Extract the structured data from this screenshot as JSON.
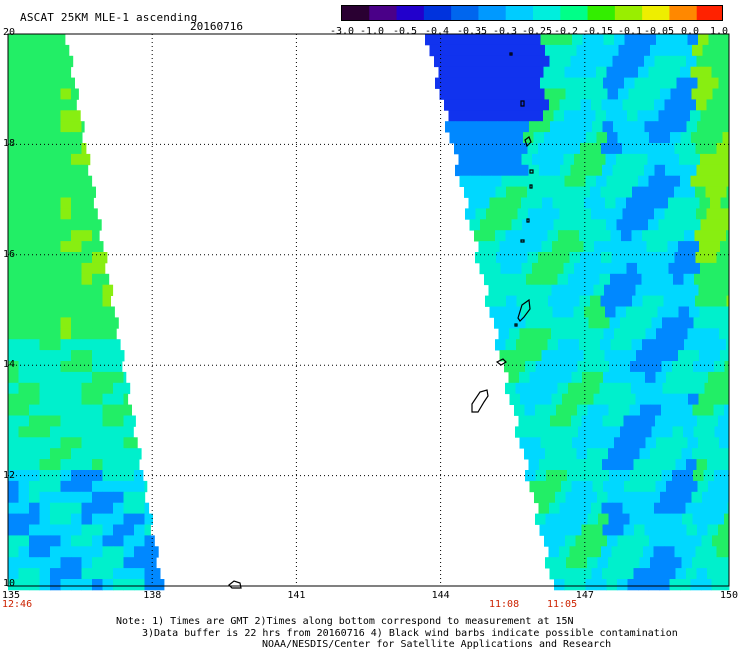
{
  "header": {
    "title": "ASCAT 25KM MLE-1 ascending",
    "date": "20160716"
  },
  "colorbar": {
    "labels": [
      "-3.0",
      "-1.0",
      "-0.5",
      "-0.4",
      "-0.35",
      "-0.3",
      "-0.25",
      "-0.2",
      "-0.15",
      "-0.1",
      "-0.05",
      "0.0",
      "1.0"
    ],
    "colors": [
      "#2a0032",
      "#4a0088",
      "#2200cc",
      "#0033dd",
      "#0066ee",
      "#0099ff",
      "#00ccff",
      "#00eedd",
      "#00ff88",
      "#33ee00",
      "#99ee00",
      "#eeee00",
      "#ff8800",
      "#ff2200"
    ]
  },
  "axes": {
    "x_ticks": [
      "135",
      "138",
      "141",
      "144",
      "147",
      "150"
    ],
    "y_ticks": [
      "20",
      "18",
      "16",
      "14",
      "12",
      "10"
    ],
    "x_range": [
      135,
      150
    ],
    "y_range": [
      10,
      20
    ]
  },
  "times": {
    "left": "12:46",
    "middle_a": "11:08",
    "middle_b": "11:05"
  },
  "notes": {
    "line1": "Note: 1) Times are GMT 2)Times along bottom correspond to measurement at 15N",
    "line2": "3)Data buffer is 22 hrs from 20160716 4) Black wind barbs indicate possible contamination",
    "line3": "NOAA/NESDIS/Center for Satellite Applications and Research"
  },
  "palette": {
    "green": "#22ee66",
    "aqua": "#00f0cc",
    "cyan": "#00d8ff",
    "blue": "#0088ff",
    "deep_blue": "#1133ee",
    "lime": "#88ee11"
  }
}
